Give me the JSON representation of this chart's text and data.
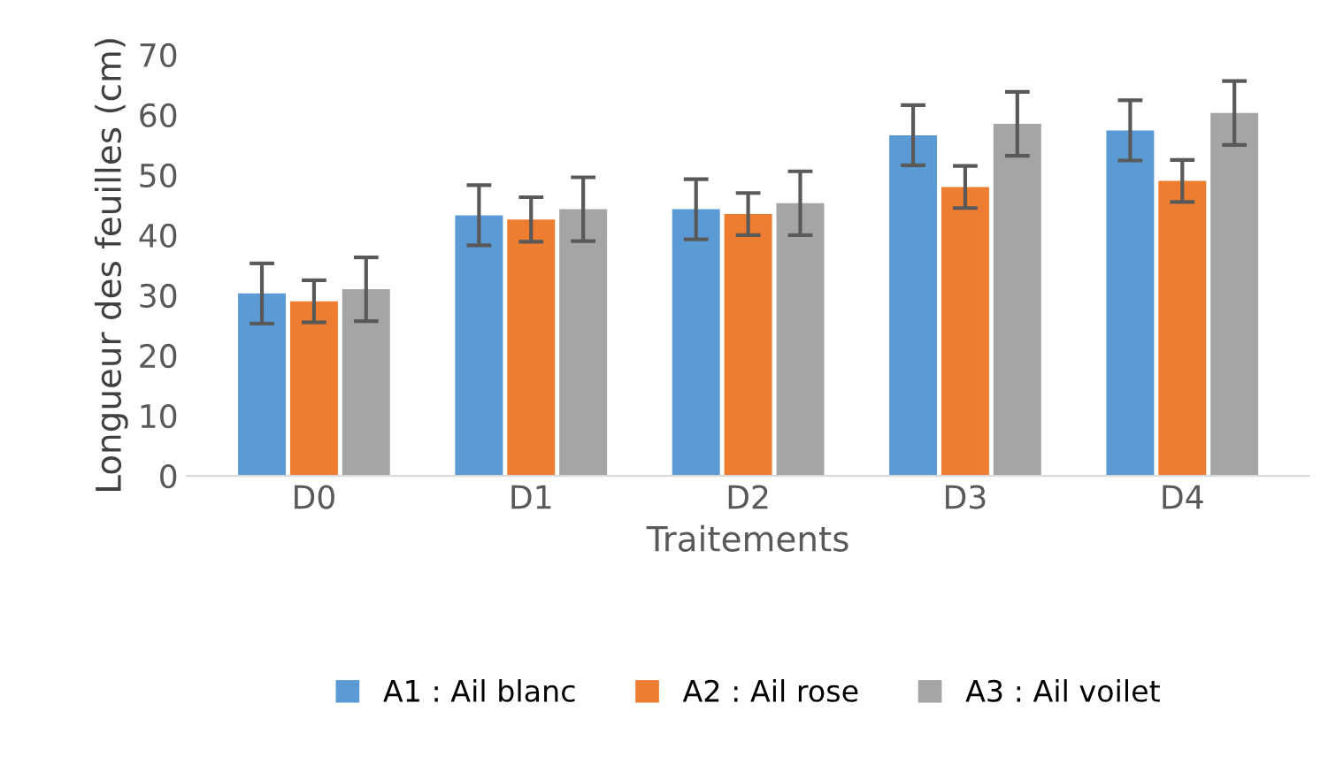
{
  "chart_data": {
    "type": "bar",
    "xlabel": "Traitements",
    "ylabel": "Longueur des feuilles (cm)",
    "categories": [
      "D0",
      "D1",
      "D2",
      "D3",
      "D4"
    ],
    "series": [
      {
        "name": "A1 : Ail blanc",
        "color": "#5b9bd5",
        "values": [
          30.3,
          43.3,
          44.3,
          56.6,
          57.4
        ],
        "errors": [
          5,
          5,
          5,
          5,
          5
        ]
      },
      {
        "name": "A2 : Ail rose",
        "color": "#ed7d31",
        "values": [
          29,
          42.6,
          43.5,
          48,
          49
        ],
        "errors": [
          3.5,
          3.7,
          3.5,
          3.5,
          3.5
        ]
      },
      {
        "name": "A3 : Ail voilet",
        "color": "#a5a5a5",
        "values": [
          31,
          44.3,
          45.3,
          58.5,
          60.3
        ],
        "errors": [
          5.3,
          5.3,
          5.3,
          5.3,
          5.3
        ]
      }
    ],
    "ylim": [
      0,
      70
    ],
    "yticks": [
      0,
      10,
      20,
      30,
      40,
      50,
      60,
      70
    ],
    "grid": false,
    "legend": "bottom"
  }
}
